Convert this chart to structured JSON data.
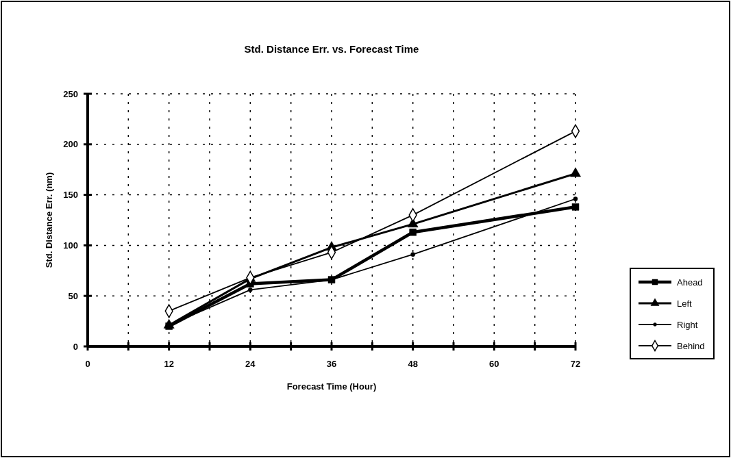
{
  "chart_data": {
    "type": "line",
    "title": "Std. Distance Err. vs. Forecast Time",
    "xlabel": "Forecast Time (Hour)",
    "ylabel": "Std. Distance Err. (nm)",
    "x": [
      12,
      24,
      36,
      48,
      72
    ],
    "series": [
      {
        "name": "Ahead",
        "color": "#000000",
        "marker": "square",
        "values": [
          20,
          62,
          66,
          113,
          138
        ]
      },
      {
        "name": "Left",
        "color": "#000000",
        "marker": "triangle",
        "values": [
          21,
          67,
          98,
          121,
          171
        ]
      },
      {
        "name": "Right",
        "color": "#000000",
        "marker": "circle",
        "values": [
          21,
          56,
          66,
          91,
          146
        ]
      },
      {
        "name": "Behind",
        "color": "#000000",
        "marker": "diamond",
        "values": [
          35,
          68,
          93,
          130,
          213
        ]
      }
    ],
    "xlim": [
      0,
      72
    ],
    "xticks": [
      0,
      {
        "value": 6,
        "label": null
      },
      12,
      {
        "value": 18,
        "label": null
      },
      24,
      {
        "value": 30,
        "label": null
      },
      36,
      {
        "value": 42,
        "label": null
      },
      48,
      {
        "value": 54,
        "label": null
      },
      60,
      {
        "value": 66,
        "label": null
      },
      72
    ],
    "ylim": [
      0,
      250
    ],
    "yticks": [
      0,
      50,
      100,
      150,
      200,
      250
    ],
    "grid": true,
    "legend": "right",
    "line_style": "solid"
  }
}
